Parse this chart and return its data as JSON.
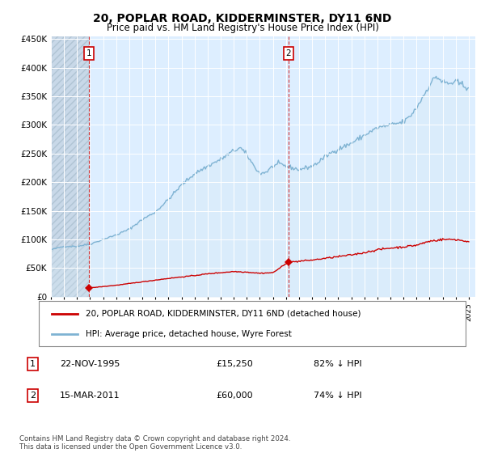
{
  "title": "20, POPLAR ROAD, KIDDERMINSTER, DY11 6ND",
  "subtitle": "Price paid vs. HM Land Registry's House Price Index (HPI)",
  "ylabel_ticks": [
    "£0",
    "£50K",
    "£100K",
    "£150K",
    "£200K",
    "£250K",
    "£300K",
    "£350K",
    "£400K",
    "£450K"
  ],
  "ytick_values": [
    0,
    50000,
    100000,
    150000,
    200000,
    250000,
    300000,
    350000,
    400000,
    450000
  ],
  "ylim": [
    0,
    455000
  ],
  "xlim_start": 1993.0,
  "xlim_end": 2025.5,
  "hpi_color": "#7fb3d3",
  "hpi_fill_color": "#d6e9f5",
  "price_color": "#cc0000",
  "transaction1_year": 1995.9,
  "transaction1_price": 15250,
  "transaction2_year": 2011.2,
  "transaction2_price": 60000,
  "legend_line1": "20, POPLAR ROAD, KIDDERMINSTER, DY11 6ND (detached house)",
  "legend_line2": "HPI: Average price, detached house, Wyre Forest",
  "footnote": "Contains HM Land Registry data © Crown copyright and database right 2024.\nThis data is licensed under the Open Government Licence v3.0.",
  "chart_bg": "#ddeeff",
  "hatch_color": "#c8d8e8",
  "background_color": "#ffffff",
  "grid_color": "#c0ccd8"
}
